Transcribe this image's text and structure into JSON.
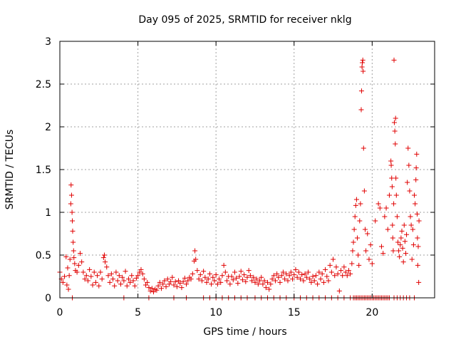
{
  "chart_data": {
    "type": "scatter",
    "title": "Day 095 of 2025, SRMTID for receiver nklg",
    "xlabel": "GPS time / hours",
    "ylabel": "SRMTID / TECUs",
    "xlim": [
      0,
      24
    ],
    "ylim": [
      0,
      3
    ],
    "xticks": [
      0,
      5,
      10,
      15,
      20
    ],
    "yticks": [
      0,
      0.5,
      1,
      1.5,
      2,
      2.5,
      3
    ],
    "xtick_labels": [
      "0",
      "5",
      "10",
      "15",
      "20"
    ],
    "ytick_labels": [
      "0",
      "0.5",
      "1",
      "1.5",
      "2",
      "2.5",
      "3"
    ],
    "grid": true,
    "marker": "+",
    "colors": {
      "points": "#e00000",
      "grid": "#a0a0a0",
      "frame": "#000000"
    },
    "series": [
      {
        "name": "SRMTID",
        "points": [
          [
            0.0,
            0.3
          ],
          [
            0.1,
            0.22
          ],
          [
            0.2,
            0.18
          ],
          [
            0.3,
            0.25
          ],
          [
            0.4,
            0.48
          ],
          [
            0.45,
            0.15
          ],
          [
            0.5,
            0.35
          ],
          [
            0.55,
            0.1
          ],
          [
            0.6,
            0.26
          ],
          [
            0.65,
            0.45
          ],
          [
            0.7,
            1.1
          ],
          [
            0.72,
            1.32
          ],
          [
            0.75,
            1.2
          ],
          [
            0.78,
            1.0
          ],
          [
            0.8,
            0.9
          ],
          [
            0.82,
            0.78
          ],
          [
            0.85,
            0.65
          ],
          [
            0.88,
            0.55
          ],
          [
            0.9,
            0.47
          ],
          [
            0.95,
            0.4
          ],
          [
            1.0,
            0.32
          ],
          [
            1.1,
            0.3
          ],
          [
            1.2,
            0.38
          ],
          [
            1.3,
            0.52
          ],
          [
            1.4,
            0.42
          ],
          [
            1.5,
            0.3
          ],
          [
            1.6,
            0.22
          ],
          [
            1.7,
            0.26
          ],
          [
            1.8,
            0.2
          ],
          [
            1.9,
            0.33
          ],
          [
            2.0,
            0.25
          ],
          [
            2.1,
            0.15
          ],
          [
            2.2,
            0.3
          ],
          [
            2.3,
            0.18
          ],
          [
            2.4,
            0.26
          ],
          [
            2.5,
            0.14
          ],
          [
            2.6,
            0.3
          ],
          [
            2.7,
            0.22
          ],
          [
            2.8,
            0.47
          ],
          [
            2.85,
            0.5
          ],
          [
            2.9,
            0.42
          ],
          [
            3.0,
            0.36
          ],
          [
            3.1,
            0.26
          ],
          [
            3.2,
            0.18
          ],
          [
            3.3,
            0.28
          ],
          [
            3.4,
            0.22
          ],
          [
            3.5,
            0.14
          ],
          [
            3.6,
            0.3
          ],
          [
            3.7,
            0.2
          ],
          [
            3.8,
            0.26
          ],
          [
            3.9,
            0.16
          ],
          [
            4.0,
            0.24
          ],
          [
            4.1,
            0.2
          ],
          [
            4.2,
            0.31
          ],
          [
            4.3,
            0.14
          ],
          [
            4.4,
            0.22
          ],
          [
            4.5,
            0.18
          ],
          [
            4.6,
            0.26
          ],
          [
            4.7,
            0.2
          ],
          [
            4.8,
            0.14
          ],
          [
            4.9,
            0.23
          ],
          [
            5.0,
            0.26
          ],
          [
            5.1,
            0.3
          ],
          [
            5.2,
            0.33
          ],
          [
            5.3,
            0.28
          ],
          [
            5.4,
            0.22
          ],
          [
            5.5,
            0.15
          ],
          [
            5.6,
            0.18
          ],
          [
            5.7,
            0.12
          ],
          [
            5.8,
            0.08
          ],
          [
            5.9,
            0.11
          ],
          [
            6.0,
            0.07
          ],
          [
            6.1,
            0.1
          ],
          [
            6.2,
            0.09
          ],
          [
            6.3,
            0.14
          ],
          [
            6.4,
            0.18
          ],
          [
            6.5,
            0.11
          ],
          [
            6.6,
            0.16
          ],
          [
            6.7,
            0.2
          ],
          [
            6.8,
            0.13
          ],
          [
            6.9,
            0.22
          ],
          [
            7.0,
            0.16
          ],
          [
            7.1,
            0.19
          ],
          [
            7.2,
            0.24
          ],
          [
            7.3,
            0.15
          ],
          [
            7.4,
            0.19
          ],
          [
            7.5,
            0.13
          ],
          [
            7.6,
            0.2
          ],
          [
            7.7,
            0.17
          ],
          [
            7.8,
            0.12
          ],
          [
            7.9,
            0.19
          ],
          [
            8.0,
            0.23
          ],
          [
            8.1,
            0.16
          ],
          [
            8.2,
            0.2
          ],
          [
            8.3,
            0.24
          ],
          [
            8.4,
            0.22
          ],
          [
            8.5,
            0.28
          ],
          [
            8.6,
            0.43
          ],
          [
            8.65,
            0.55
          ],
          [
            8.7,
            0.45
          ],
          [
            8.8,
            0.32
          ],
          [
            8.9,
            0.22
          ],
          [
            9.0,
            0.27
          ],
          [
            9.1,
            0.2
          ],
          [
            9.2,
            0.31
          ],
          [
            9.3,
            0.24
          ],
          [
            9.4,
            0.18
          ],
          [
            9.5,
            0.22
          ],
          [
            9.6,
            0.28
          ],
          [
            9.7,
            0.16
          ],
          [
            9.8,
            0.24
          ],
          [
            9.9,
            0.2
          ],
          [
            10.0,
            0.27
          ],
          [
            10.1,
            0.16
          ],
          [
            10.2,
            0.22
          ],
          [
            10.3,
            0.18
          ],
          [
            10.4,
            0.26
          ],
          [
            10.5,
            0.38
          ],
          [
            10.6,
            0.3
          ],
          [
            10.7,
            0.2
          ],
          [
            10.8,
            0.25
          ],
          [
            10.9,
            0.16
          ],
          [
            11.0,
            0.25
          ],
          [
            11.1,
            0.21
          ],
          [
            11.2,
            0.3
          ],
          [
            11.3,
            0.23
          ],
          [
            11.4,
            0.17
          ],
          [
            11.5,
            0.25
          ],
          [
            11.6,
            0.31
          ],
          [
            11.7,
            0.21
          ],
          [
            11.8,
            0.27
          ],
          [
            11.9,
            0.19
          ],
          [
            12.0,
            0.24
          ],
          [
            12.1,
            0.32
          ],
          [
            12.2,
            0.26
          ],
          [
            12.3,
            0.2
          ],
          [
            12.4,
            0.24
          ],
          [
            12.5,
            0.18
          ],
          [
            12.6,
            0.22
          ],
          [
            12.7,
            0.16
          ],
          [
            12.8,
            0.2
          ],
          [
            12.9,
            0.24
          ],
          [
            13.0,
            0.16
          ],
          [
            13.1,
            0.2
          ],
          [
            13.2,
            0.12
          ],
          [
            13.3,
            0.18
          ],
          [
            13.4,
            0.1
          ],
          [
            13.5,
            0.16
          ],
          [
            13.6,
            0.22
          ],
          [
            13.7,
            0.26
          ],
          [
            13.8,
            0.2
          ],
          [
            13.9,
            0.28
          ],
          [
            14.0,
            0.24
          ],
          [
            14.1,
            0.18
          ],
          [
            14.2,
            0.26
          ],
          [
            14.3,
            0.3
          ],
          [
            14.4,
            0.22
          ],
          [
            14.5,
            0.28
          ],
          [
            14.6,
            0.2
          ],
          [
            14.7,
            0.26
          ],
          [
            14.8,
            0.3
          ],
          [
            14.9,
            0.22
          ],
          [
            15.0,
            0.27
          ],
          [
            15.1,
            0.33
          ],
          [
            15.2,
            0.24
          ],
          [
            15.3,
            0.3
          ],
          [
            15.4,
            0.22
          ],
          [
            15.5,
            0.27
          ],
          [
            15.6,
            0.2
          ],
          [
            15.7,
            0.28
          ],
          [
            15.8,
            0.24
          ],
          [
            15.9,
            0.3
          ],
          [
            16.0,
            0.22
          ],
          [
            16.1,
            0.18
          ],
          [
            16.2,
            0.25
          ],
          [
            16.3,
            0.2
          ],
          [
            16.4,
            0.26
          ],
          [
            16.5,
            0.16
          ],
          [
            16.6,
            0.3
          ],
          [
            16.7,
            0.22
          ],
          [
            16.8,
            0.28
          ],
          [
            16.9,
            0.18
          ],
          [
            17.0,
            0.33
          ],
          [
            17.1,
            0.25
          ],
          [
            17.2,
            0.2
          ],
          [
            17.3,
            0.38
          ],
          [
            17.4,
            0.3
          ],
          [
            17.5,
            0.45
          ],
          [
            17.6,
            0.26
          ],
          [
            17.7,
            0.36
          ],
          [
            17.8,
            0.28
          ],
          [
            17.9,
            0.08
          ],
          [
            18.0,
            0.32
          ],
          [
            18.1,
            0.26
          ],
          [
            18.2,
            0.36
          ],
          [
            18.3,
            0.3
          ],
          [
            18.4,
            0.26
          ],
          [
            18.5,
            0.32
          ],
          [
            18.6,
            0.28
          ],
          [
            18.7,
            0.4
          ],
          [
            18.75,
            0.55
          ],
          [
            18.8,
            0.65
          ],
          [
            18.85,
            0.8
          ],
          [
            18.9,
            0.95
          ],
          [
            18.95,
            1.08
          ],
          [
            19.0,
            1.15
          ],
          [
            19.05,
            0.7
          ],
          [
            19.1,
            0.5
          ],
          [
            19.15,
            0.38
          ],
          [
            19.2,
            0.9
          ],
          [
            19.25,
            1.1
          ],
          [
            19.3,
            2.2
          ],
          [
            19.32,
            2.42
          ],
          [
            19.35,
            2.7
          ],
          [
            19.37,
            2.75
          ],
          [
            19.4,
            2.78
          ],
          [
            19.42,
            2.65
          ],
          [
            19.45,
            1.75
          ],
          [
            19.5,
            1.25
          ],
          [
            19.55,
            0.8
          ],
          [
            19.6,
            0.55
          ],
          [
            19.7,
            0.75
          ],
          [
            19.8,
            0.45
          ],
          [
            19.9,
            0.62
          ],
          [
            20.0,
            0.4
          ],
          [
            20.2,
            0.9
          ],
          [
            20.4,
            1.1
          ],
          [
            20.5,
            1.05
          ],
          [
            20.6,
            0.6
          ],
          [
            20.7,
            0.52
          ],
          [
            20.8,
            0.95
          ],
          [
            20.9,
            1.05
          ],
          [
            21.0,
            0.8
          ],
          [
            21.1,
            1.2
          ],
          [
            21.2,
            1.6
          ],
          [
            21.22,
            1.55
          ],
          [
            21.25,
            1.4
          ],
          [
            21.28,
            1.3
          ],
          [
            21.3,
            0.85
          ],
          [
            21.32,
            0.7
          ],
          [
            21.35,
            0.55
          ],
          [
            21.38,
            1.1
          ],
          [
            21.4,
            2.78
          ],
          [
            21.42,
            2.05
          ],
          [
            21.45,
            1.95
          ],
          [
            21.48,
            1.8
          ],
          [
            21.5,
            2.1
          ],
          [
            21.52,
            1.4
          ],
          [
            21.55,
            1.2
          ],
          [
            21.6,
            0.95
          ],
          [
            21.65,
            0.65
          ],
          [
            21.7,
            0.55
          ],
          [
            21.75,
            0.48
          ],
          [
            21.8,
            0.62
          ],
          [
            21.85,
            0.7
          ],
          [
            21.9,
            0.78
          ],
          [
            21.95,
            0.58
          ],
          [
            22.0,
            0.42
          ],
          [
            22.05,
            0.85
          ],
          [
            22.1,
            0.66
          ],
          [
            22.15,
            0.52
          ],
          [
            22.2,
            0.74
          ],
          [
            22.25,
            1.35
          ],
          [
            22.3,
            1.75
          ],
          [
            22.35,
            1.55
          ],
          [
            22.4,
            1.25
          ],
          [
            22.45,
            0.95
          ],
          [
            22.5,
            0.85
          ],
          [
            22.55,
            0.45
          ],
          [
            22.6,
            0.8
          ],
          [
            22.65,
            0.62
          ],
          [
            22.7,
            1.2
          ],
          [
            22.75,
            1.1
          ],
          [
            22.8,
            1.38
          ],
          [
            22.82,
            1.52
          ],
          [
            22.85,
            1.68
          ],
          [
            22.88,
            0.98
          ],
          [
            22.9,
            0.7
          ],
          [
            22.92,
            0.38
          ],
          [
            22.95,
            0.6
          ],
          [
            22.98,
            0.18
          ],
          [
            23.0,
            0.9
          ]
        ],
        "zero_points": [
          0.8,
          4.1,
          5.7,
          7.3,
          8.1,
          9.2,
          9.6,
          10.0,
          10.4,
          10.8,
          11.2,
          11.6,
          12.0,
          12.5,
          12.9,
          13.3,
          13.7,
          14.1,
          14.5,
          15.0,
          15.4,
          15.8,
          16.2,
          16.6,
          17.0,
          17.4,
          17.8,
          18.2,
          18.6,
          18.8,
          18.9,
          19.0,
          19.1,
          19.2,
          19.3,
          19.4,
          19.5,
          19.6,
          19.7,
          19.8,
          19.9,
          20.0,
          20.1,
          20.2,
          20.3,
          20.4,
          20.5,
          20.6,
          20.7,
          20.8,
          20.9,
          21.0,
          21.1,
          21.4,
          21.6,
          21.8,
          22.0,
          22.2,
          22.4,
          22.7
        ]
      }
    ]
  }
}
